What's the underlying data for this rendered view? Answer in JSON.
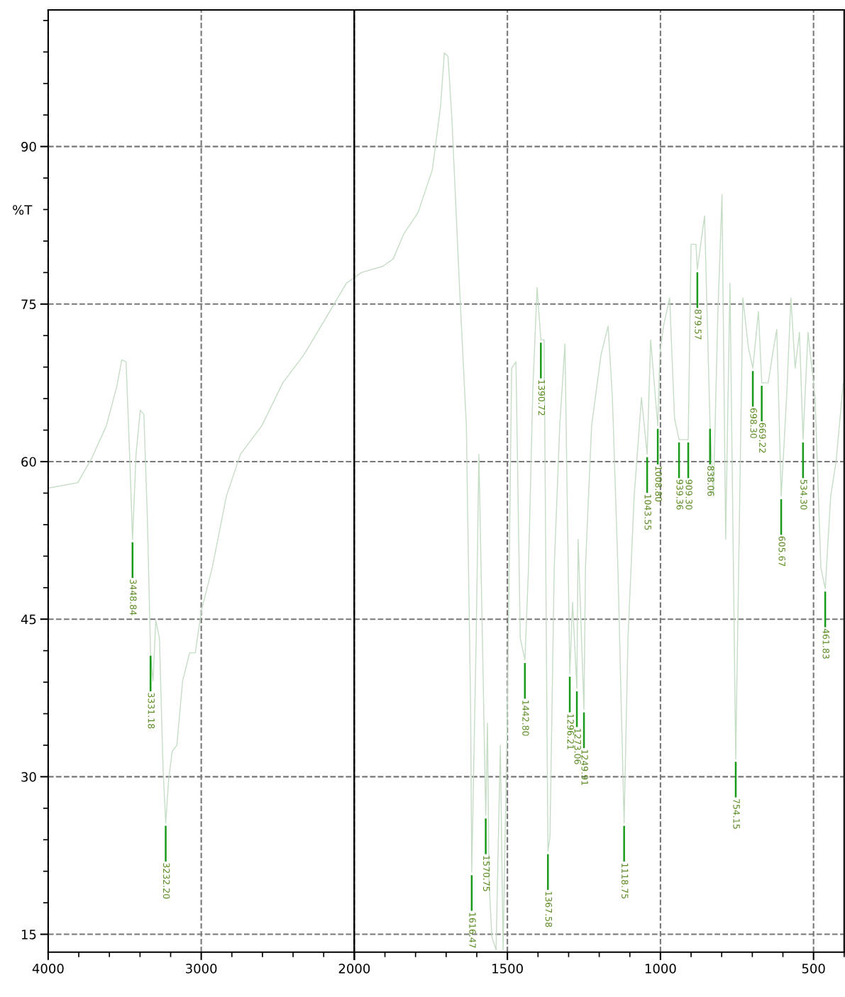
{
  "chart_data": [
    {
      "type": "line",
      "ylabel": "%T",
      "x": [
        3990,
        3806,
        3713,
        3620,
        3551,
        3519,
        3491,
        3468,
        3448.84,
        3426,
        3398,
        3375,
        3352,
        3331.18,
        3315,
        3297,
        3273,
        3250,
        3232.2,
        3213,
        3190,
        3159,
        3122,
        3076,
        3039,
        2998,
        2928,
        2836,
        2744,
        2605,
        2467,
        2328,
        2189,
        2051,
        2000
      ],
      "series": [
        {
          "color": "#c5dcc5",
          "values": [
            57.5,
            58.0,
            60.4,
            63.4,
            67.2,
            69.7,
            69.5,
            60.7,
            52.6,
            60.7,
            64.9,
            64.5,
            54.7,
            41.8,
            39.1,
            44.9,
            43.2,
            31.0,
            25.6,
            29.7,
            32.4,
            33.0,
            39.1,
            41.8,
            41.8,
            45.9,
            49.9,
            56.7,
            60.7,
            63.4,
            67.5,
            70.2,
            73.6,
            77.0,
            77.5
          ]
        }
      ],
      "xlim": [
        4000,
        2000
      ],
      "ylim": [
        13.3,
        103
      ],
      "xticks": [
        4000,
        3000,
        {
          "value": 2000,
          "label": null
        }
      ],
      "yticks": [
        15,
        30,
        45,
        60,
        75,
        90
      ],
      "grid": true,
      "marker": "none",
      "line_style": "solid",
      "annotations": [
        {
          "text": "3448.84",
          "x": 3448.84,
          "y": 52.6
        },
        {
          "text": "3331.18",
          "x": 3331.18,
          "y": 41.8
        },
        {
          "text": "3232.20",
          "x": 3232.2,
          "y": 25.6
        }
      ]
    },
    {
      "type": "line",
      "x": [
        2000,
        1977,
        1907,
        1873,
        1838,
        1792,
        1745,
        1718,
        1706,
        1694,
        1681,
        1657,
        1634,
        1620,
        1616.47,
        1602,
        1593,
        1570.75,
        1565,
        1560,
        1551,
        1537,
        1523,
        1514,
        1500,
        1486,
        1472,
        1458,
        1442.8,
        1431,
        1417,
        1403,
        1390.72,
        1380,
        1367.58,
        1361,
        1347,
        1329,
        1312,
        1296.21,
        1287,
        1273.06,
        1269,
        1249.91,
        1245,
        1225,
        1194,
        1171,
        1157,
        1139,
        1118.75,
        1106,
        1086,
        1062,
        1043.55,
        1032,
        1008.8,
        1002,
        990,
        970,
        954,
        939.36,
        909.3,
        900,
        884,
        879.57,
        856,
        838.06,
        827,
        813,
        799,
        787,
        773,
        754.15,
        731,
        713,
        698.3,
        680,
        669.22,
        648,
        634,
        620,
        605.67,
        588,
        574,
        560,
        546,
        534.3,
        518,
        495,
        476,
        461.83,
        444,
        426,
        403
      ],
      "series": [
        {
          "color": "#c5dcc5",
          "values": [
            77.5,
            78.0,
            78.6,
            79.3,
            81.7,
            83.7,
            87.8,
            93.9,
            98.9,
            98.6,
            92.5,
            77.0,
            63.4,
            36.4,
            20.9,
            43.2,
            60.7,
            26.3,
            35.1,
            20.2,
            14.8,
            13.5,
            33.0,
            13.5,
            36.4,
            68.9,
            69.5,
            43.2,
            41.1,
            49.9,
            66.8,
            76.6,
            71.6,
            71.6,
            22.9,
            24.3,
            49.9,
            63.4,
            71.2,
            39.8,
            46.6,
            38.4,
            52.6,
            36.4,
            49.9,
            63.4,
            70.2,
            72.9,
            66.1,
            49.9,
            25.6,
            43.2,
            56.7,
            66.1,
            60.7,
            71.6,
            63.4,
            70.2,
            72.9,
            75.6,
            64.1,
            62.1,
            62.1,
            80.7,
            80.7,
            78.3,
            83.4,
            63.4,
            56.7,
            73.6,
            85.4,
            52.6,
            77.0,
            31.7,
            75.6,
            70.9,
            68.9,
            74.3,
            67.5,
            67.5,
            70.2,
            72.6,
            56.7,
            66.1,
            75.6,
            68.9,
            72.3,
            62.1,
            72.3,
            66.1,
            49.9,
            47.9,
            56.7,
            60.1,
            67.5
          ]
        }
      ],
      "xlim": [
        2000,
        400
      ],
      "ylim": [
        13.3,
        103
      ],
      "xticks": [
        2000,
        1500,
        1000,
        500
      ],
      "yticks": [
        15,
        30,
        45,
        60,
        75,
        90
      ],
      "tick_labels": "x",
      "grid": true,
      "marker": "none",
      "line_style": "solid",
      "annotations": [
        {
          "text": "1616.47",
          "x": 1616.47,
          "y": 20.9
        },
        {
          "text": "1570.75",
          "x": 1570.75,
          "y": 26.3
        },
        {
          "text": "1442.80",
          "x": 1442.8,
          "y": 41.1
        },
        {
          "text": "1390.72",
          "x": 1390.72,
          "y": 71.6
        },
        {
          "text": "1367.58",
          "x": 1367.58,
          "y": 22.9
        },
        {
          "text": "1296.21",
          "x": 1296.21,
          "y": 39.8
        },
        {
          "text": "1273.06",
          "x": 1273.06,
          "y": 38.4
        },
        {
          "text": "1249.91",
          "x": 1249.91,
          "y": 36.4
        },
        {
          "text": "1118.75",
          "x": 1118.75,
          "y": 25.6
        },
        {
          "text": "1043.55",
          "x": 1043.55,
          "y": 60.7
        },
        {
          "text": "1008.80",
          "x": 1008.8,
          "y": 63.4
        },
        {
          "text": "939.36",
          "x": 939.36,
          "y": 62.1
        },
        {
          "text": "909.30",
          "x": 909.3,
          "y": 62.1
        },
        {
          "text": "879.57",
          "x": 879.57,
          "y": 78.3
        },
        {
          "text": "838.06",
          "x": 838.06,
          "y": 63.4
        },
        {
          "text": "754.15",
          "x": 754.15,
          "y": 31.7
        },
        {
          "text": "698.30",
          "x": 698.3,
          "y": 68.9
        },
        {
          "text": "669.22",
          "x": 669.22,
          "y": 67.5
        },
        {
          "text": "605.67",
          "x": 605.67,
          "y": 56.7
        },
        {
          "text": "534.30",
          "x": 534.3,
          "y": 62.1
        },
        {
          "text": "461.83",
          "x": 461.83,
          "y": 47.9
        }
      ]
    }
  ]
}
